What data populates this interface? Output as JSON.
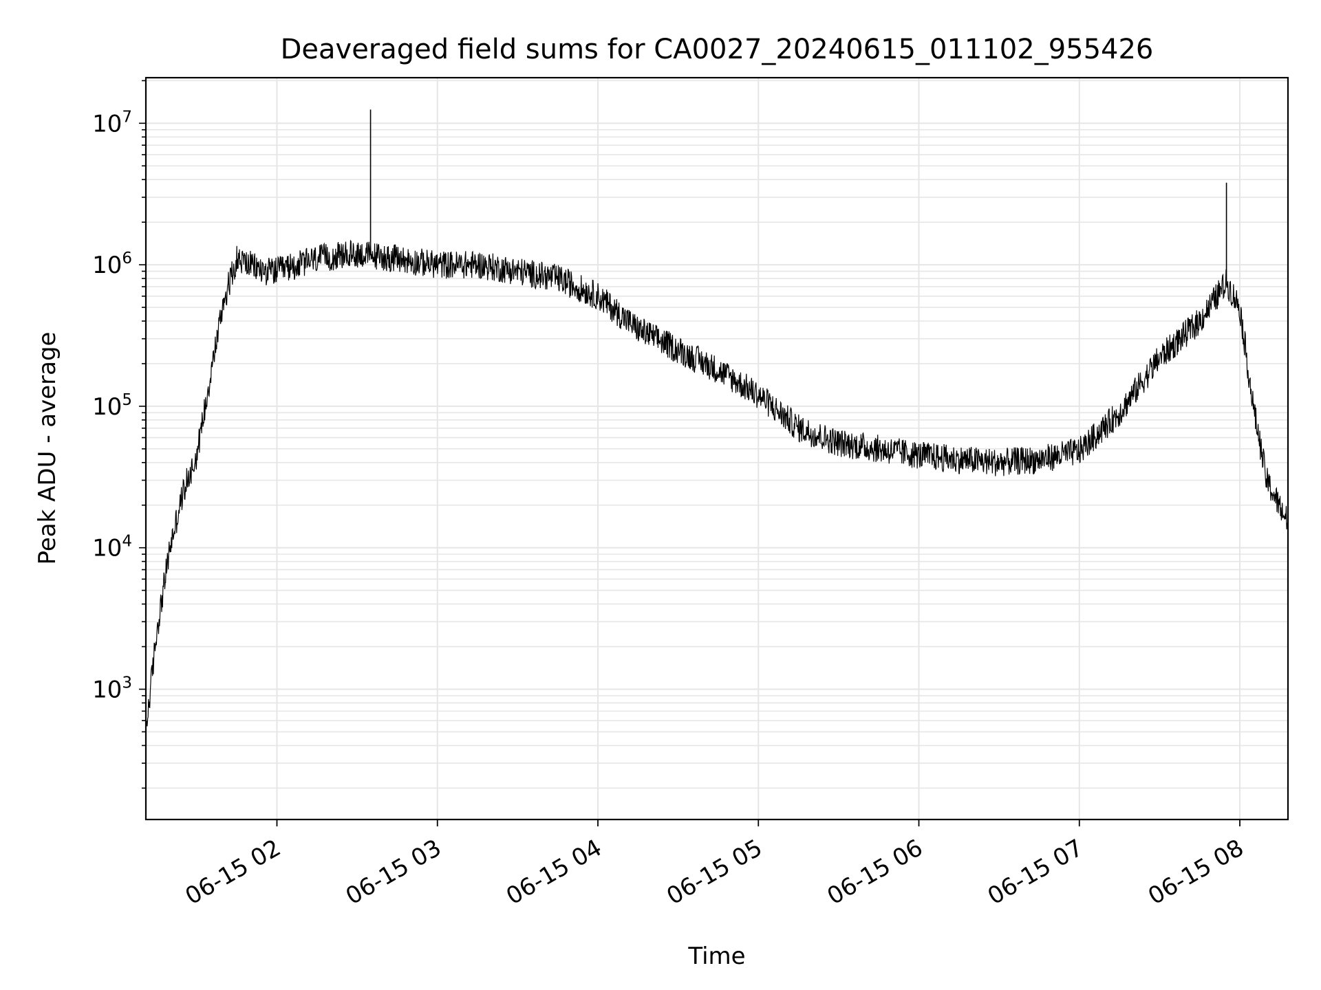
{
  "chart_data": {
    "type": "line",
    "title": "Deaveraged field sums for CA0027_20240615_011102_955426",
    "xlabel": "Time",
    "ylabel": "Peak ADU - average",
    "y_scale": "log",
    "grid": true,
    "line_color": "#000000",
    "grid_color": "#e6e6e6",
    "xlim": [
      "06-15 01:11",
      "06-15 08:18"
    ],
    "ylim": [
      120,
      21000000
    ],
    "x_ticks": [
      {
        "value": "06-15 02:00",
        "label": "06-15 02"
      },
      {
        "value": "06-15 03:00",
        "label": "06-15 03"
      },
      {
        "value": "06-15 04:00",
        "label": "06-15 04"
      },
      {
        "value": "06-15 05:00",
        "label": "06-15 05"
      },
      {
        "value": "06-15 06:00",
        "label": "06-15 06"
      },
      {
        "value": "06-15 07:00",
        "label": "06-15 07"
      },
      {
        "value": "06-15 08:00",
        "label": "06-15 08"
      }
    ],
    "y_ticks": [
      {
        "value": 1000,
        "base": "10",
        "exp": "3"
      },
      {
        "value": 10000,
        "base": "10",
        "exp": "4"
      },
      {
        "value": 100000,
        "base": "10",
        "exp": "5"
      },
      {
        "value": 1000000,
        "base": "10",
        "exp": "6"
      },
      {
        "value": 10000000,
        "base": "10",
        "exp": "7"
      }
    ],
    "series": [
      {
        "x": [
          "06-15 01:11",
          "06-15 01:15",
          "06-15 01:20",
          "06-15 01:25",
          "06-15 01:30",
          "06-15 01:35",
          "06-15 01:40",
          "06-15 01:45",
          "06-15 01:50",
          "06-15 01:55",
          "06-15 02:00",
          "06-15 02:15",
          "06-15 02:30",
          "06-15 02:45",
          "06-15 03:00",
          "06-15 03:15",
          "06-15 03:30",
          "06-15 03:45",
          "06-15 04:00",
          "06-15 04:15",
          "06-15 04:30",
          "06-15 04:45",
          "06-15 05:00",
          "06-15 05:15",
          "06-15 05:30",
          "06-15 05:45",
          "06-15 06:00",
          "06-15 06:15",
          "06-15 06:30",
          "06-15 06:45",
          "06-15 07:00",
          "06-15 07:15",
          "06-15 07:30",
          "06-15 07:45",
          "06-15 07:55",
          "06-15 08:00",
          "06-15 08:05",
          "06-15 08:10",
          "06-15 08:18"
        ],
        "y": [
          500,
          2500,
          10000,
          25000,
          45000,
          160000,
          550000,
          1100000,
          1000000,
          900000,
          900000,
          1100000,
          1200000,
          1100000,
          1000000,
          1000000,
          900000,
          800000,
          600000,
          350000,
          250000,
          180000,
          120000,
          70000,
          55000,
          50000,
          45000,
          42000,
          40000,
          42000,
          48000,
          90000,
          220000,
          400000,
          750000,
          500000,
          100000,
          30000,
          15000
        ]
      },
      {
        "name_hidden": "",
        "spikes": [
          {
            "x": "06-15 02:35",
            "y": 12500000
          },
          {
            "x": "06-15 07:55",
            "y": 3800000
          }
        ]
      }
    ]
  }
}
